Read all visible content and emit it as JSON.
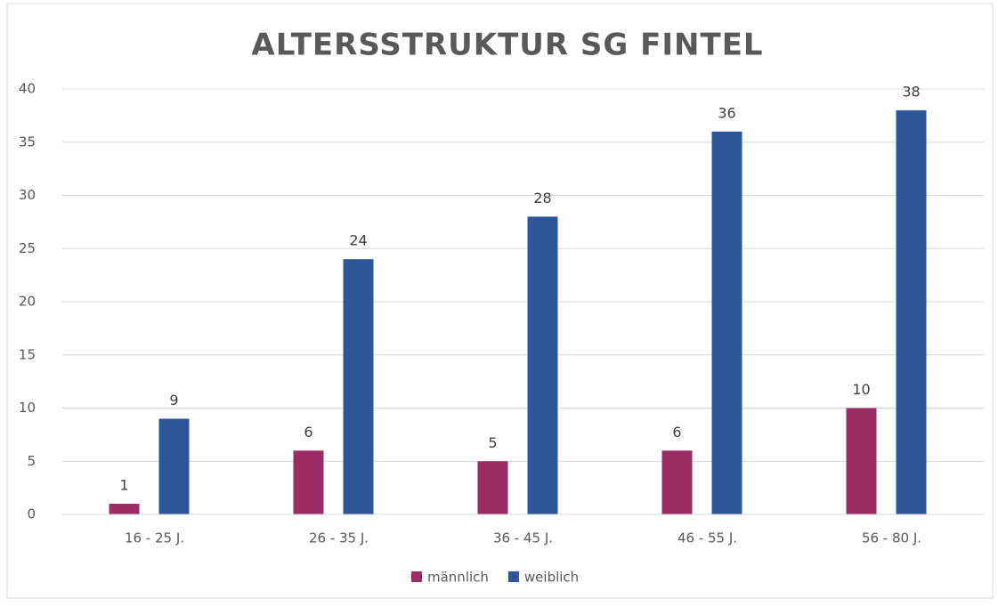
{
  "chart_data": {
    "type": "bar",
    "title": "ALTERSSTRUKTUR SG FINTEL",
    "categories": [
      "16 - 25 J.",
      "26 - 35 J.",
      "36 - 45 J.",
      "46 - 55 J.",
      "56 - 80 J."
    ],
    "series": [
      {
        "name": "männlich",
        "color": "#9b2d62",
        "values": [
          1,
          6,
          5,
          6,
          10
        ]
      },
      {
        "name": "weiblich",
        "color": "#2e5597",
        "values": [
          9,
          24,
          28,
          36,
          38
        ]
      }
    ],
    "ylim": [
      0,
      40
    ],
    "yticks": [
      0,
      5,
      10,
      15,
      20,
      25,
      30,
      35,
      40
    ],
    "grid": true,
    "legend": "bottom"
  }
}
